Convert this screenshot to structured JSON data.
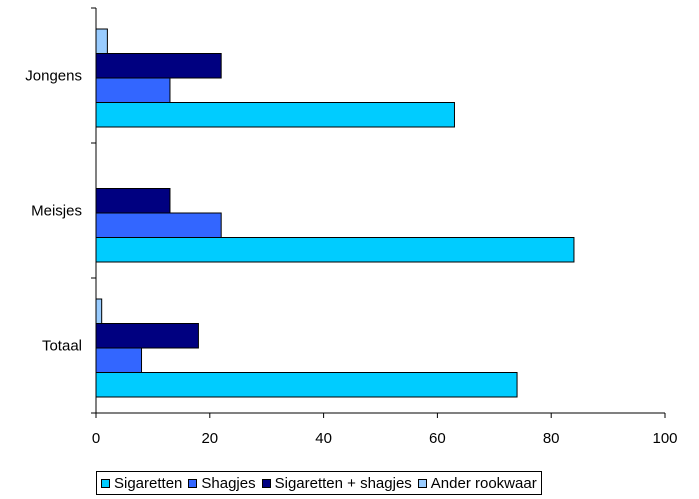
{
  "chart_data": {
    "type": "bar",
    "orientation": "horizontal",
    "categories": [
      "Jongens",
      "Meisjes",
      "Totaal"
    ],
    "series": [
      {
        "name": "Sigaretten",
        "color": "#00CCFF",
        "values": [
          63,
          84,
          74
        ]
      },
      {
        "name": "Shagjes",
        "color": "#3366FF",
        "values": [
          13,
          22,
          8
        ]
      },
      {
        "name": "Sigaretten + shagjes",
        "color": "#000080",
        "values": [
          22,
          13,
          18
        ]
      },
      {
        "name": "Ander rookwaar",
        "color": "#99CCFF",
        "values": [
          2,
          0,
          1
        ]
      }
    ],
    "xlim": [
      0,
      100
    ],
    "xticks": [
      0,
      20,
      40,
      60,
      80,
      100
    ],
    "grid": false,
    "legend": "bottom"
  }
}
